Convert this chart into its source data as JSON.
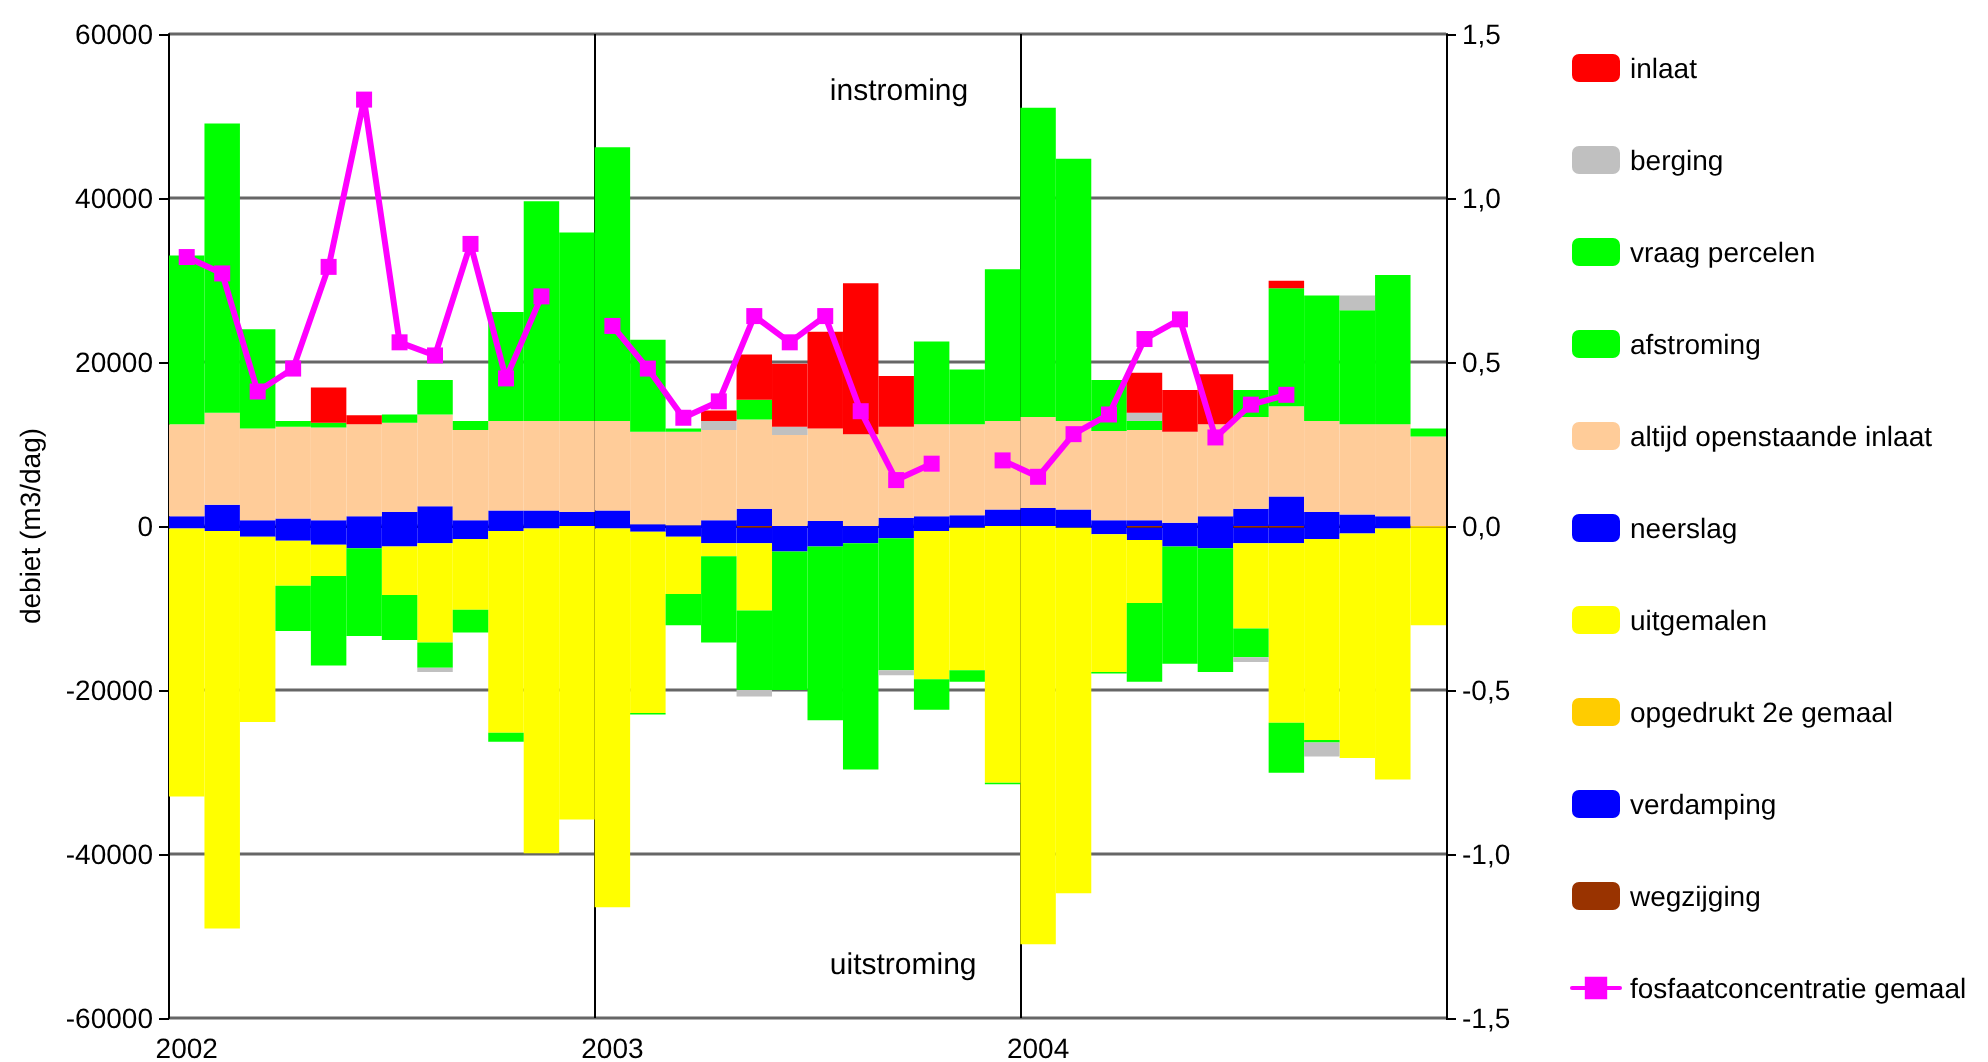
{
  "chart_data": {
    "type": "bar",
    "stacked": true,
    "ylabel": "debiet (m3/dag)",
    "categories": [
      "2002",
      null,
      null,
      null,
      null,
      null,
      null,
      null,
      null,
      null,
      null,
      null,
      "2003",
      null,
      null,
      null,
      null,
      null,
      null,
      null,
      null,
      null,
      null,
      null,
      "2004",
      null,
      null,
      null,
      null,
      null,
      null,
      null,
      null,
      null,
      null,
      null
    ],
    "ylim": [
      -60000,
      60000
    ],
    "yticks": [
      -60000,
      -40000,
      -20000,
      0,
      20000,
      40000,
      60000
    ],
    "y2lim": [
      -1.5,
      1.5
    ],
    "y2ticks": [
      {
        "value": -1.5,
        "label": "-1,5"
      },
      {
        "value": -1,
        "label": "-1,0"
      },
      {
        "value": -0.5,
        "label": "-0,5"
      },
      {
        "value": 0,
        "label": "0,0"
      },
      {
        "value": 0.5,
        "label": "0,5"
      },
      {
        "value": 1,
        "label": "1,0"
      },
      {
        "value": 1.5,
        "label": "1,5"
      }
    ],
    "grid": true,
    "legend": "right",
    "marker": "square",
    "line_style": "solid",
    "annotations": [
      "instroming",
      "uitstroming"
    ],
    "series": [
      {
        "name": "wegzijging",
        "color": "#993300",
        "values": [
          null,
          null,
          null,
          null,
          null,
          null,
          null,
          null,
          null,
          null,
          null,
          null,
          null,
          null,
          null,
          null,
          -200,
          null,
          null,
          null,
          null,
          null,
          null,
          null,
          null,
          null,
          null,
          -200,
          null,
          null,
          -200,
          -200,
          null,
          null,
          null,
          null
        ]
      },
      {
        "name": "verdamping",
        "color": "#0000ff",
        "values": [
          -300,
          -600,
          -1300,
          -1800,
          -2300,
          -2700,
          -2500,
          -2100,
          -1600,
          -600,
          -300,
          null,
          -300,
          -700,
          -1300,
          -2100,
          -1900,
          -3100,
          -2500,
          -2100,
          -1500,
          -600,
          -200,
          null,
          null,
          -200,
          -1000,
          -1500,
          -2500,
          -2700,
          -1900,
          -1900,
          -1600,
          -900,
          -300,
          null
        ]
      },
      {
        "name": "opgedrukt 2e gemaal",
        "color": "#ffcc00",
        "values": [
          null,
          null,
          null,
          null,
          null,
          null,
          null,
          null,
          null,
          null,
          null,
          null,
          null,
          null,
          null,
          null,
          null,
          null,
          null,
          null,
          null,
          null,
          null,
          null,
          null,
          null,
          null,
          null,
          null,
          null,
          null,
          null,
          null,
          null,
          null,
          -200
        ]
      },
      {
        "name": "uitgemalen",
        "color": "#ffff00",
        "values": [
          -32700,
          -48500,
          -22600,
          -5500,
          -3800,
          null,
          -5900,
          -12100,
          -8600,
          -24600,
          -39600,
          -35800,
          -46200,
          -22100,
          -7000,
          -1600,
          -8200,
          null,
          null,
          null,
          null,
          -18100,
          -17400,
          -31300,
          -51000,
          -44600,
          -16800,
          -7700,
          null,
          null,
          -10400,
          -21900,
          -24500,
          -27400,
          -30600,
          -11900
        ]
      },
      {
        "name": "neerslag",
        "color": "#0000ff",
        "values": [
          1200,
          2600,
          700,
          900,
          700,
          1200,
          1700,
          2400,
          700,
          1900,
          1900,
          1700,
          1900,
          200,
          100,
          700,
          2100,
          null,
          600,
          null,
          1000,
          1200,
          1300,
          2000,
          2200,
          2000,
          700,
          700,
          400,
          1200,
          2100,
          3600,
          1700,
          1400,
          1200,
          null
        ]
      },
      {
        "name": "altijd openstaande inlaat",
        "color": "#ffcc99",
        "values": [
          11200,
          11200,
          11200,
          11200,
          11300,
          11200,
          10900,
          11200,
          11000,
          10900,
          10900,
          11100,
          10900,
          11300,
          11400,
          11000,
          10900,
          11100,
          11300,
          11200,
          11100,
          11200,
          11100,
          10800,
          11100,
          10800,
          10900,
          11000,
          11100,
          11200,
          11200,
          11000,
          11100,
          11000,
          11200,
          10900
        ]
      },
      {
        "name": "afstroming",
        "color": "#00ff00",
        "values": [
          20600,
          35300,
          12100,
          700,
          600,
          null,
          1000,
          4200,
          1100,
          13300,
          26800,
          23000,
          33400,
          11200,
          400,
          null,
          2400,
          null,
          null,
          null,
          null,
          10100,
          6700,
          18500,
          37700,
          32000,
          6200,
          1100,
          null,
          null,
          3300,
          14400,
          15300,
          13900,
          18200,
          1000
        ]
      },
      {
        "name": "vraag percelen",
        "color": "#00ff00",
        "values": [
          null,
          null,
          null,
          -5500,
          -10900,
          -10700,
          -5500,
          -3100,
          -2800,
          -1100,
          null,
          null,
          null,
          -200,
          -3800,
          -10500,
          -9700,
          -16900,
          -21200,
          -27600,
          -16100,
          -3700,
          -1400,
          -200,
          null,
          null,
          -200,
          -9600,
          -14300,
          -15100,
          -3500,
          -6100,
          -300,
          null,
          null,
          null
        ]
      },
      {
        "name": "berging",
        "color": "#c0c0c0",
        "values": [
          null,
          null,
          null,
          null,
          null,
          null,
          null,
          -500,
          null,
          null,
          null,
          null,
          null,
          null,
          null,
          1100,
          -800,
          1000,
          null,
          null,
          -600,
          null,
          null,
          null,
          null,
          null,
          null,
          1000,
          null,
          null,
          -600,
          null,
          -1700,
          1800,
          null,
          null
        ]
      },
      {
        "name": "inlaat",
        "color": "#ff0000",
        "values": [
          null,
          null,
          null,
          null,
          4300,
          1100,
          null,
          null,
          null,
          null,
          null,
          null,
          null,
          null,
          null,
          1300,
          5500,
          7700,
          11800,
          18400,
          6200,
          null,
          null,
          null,
          null,
          null,
          null,
          4900,
          5100,
          6100,
          null,
          900,
          null,
          null,
          null,
          null
        ]
      },
      {
        "name": "fosfaatconcentratie gemaal",
        "type": "line",
        "axis": "y2",
        "color": "#ff00ff",
        "values": [
          0.82,
          0.77,
          0.41,
          0.48,
          0.79,
          1.3,
          0.56,
          0.52,
          0.86,
          0.45,
          0.7,
          null,
          0.61,
          0.48,
          0.33,
          0.38,
          0.64,
          0.56,
          0.64,
          0.35,
          0.14,
          0.19,
          null,
          0.2,
          0.15,
          0.28,
          0.34,
          0.57,
          0.63,
          0.27,
          0.37,
          0.4,
          null,
          null,
          null,
          null
        ]
      }
    ]
  }
}
